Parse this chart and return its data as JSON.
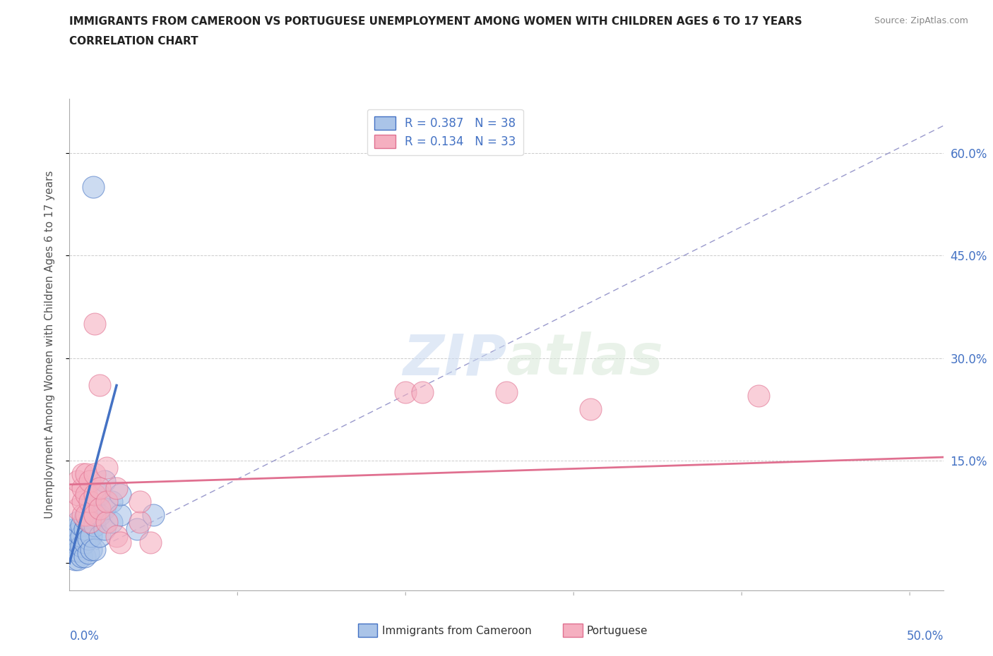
{
  "title_line1": "IMMIGRANTS FROM CAMEROON VS PORTUGUESE UNEMPLOYMENT AMONG WOMEN WITH CHILDREN AGES 6 TO 17 YEARS",
  "title_line2": "CORRELATION CHART",
  "source": "Source: ZipAtlas.com",
  "ylabel": "Unemployment Among Women with Children Ages 6 to 17 years",
  "xlim": [
    0.0,
    0.52
  ],
  "ylim": [
    -0.04,
    0.68
  ],
  "yticks": [
    0.0,
    0.15,
    0.3,
    0.45,
    0.6
  ],
  "ytick_labels": [
    "",
    "15.0%",
    "30.0%",
    "45.0%",
    "60.0%"
  ],
  "xticks": [
    0.0,
    0.1,
    0.2,
    0.3,
    0.4,
    0.5
  ],
  "xtick_labels": [
    "0.0%",
    "",
    "",
    "",
    "",
    "50.0%"
  ],
  "color_blue": "#aac4e8",
  "color_pink": "#f5afc0",
  "color_blue_dark": "#4472c4",
  "color_pink_dark": "#e07090",
  "color_axis_label": "#4472c4",
  "watermark_zip": "ZIP",
  "watermark_atlas": "atlas",
  "cameroon_points": [
    [
      0.003,
      0.005
    ],
    [
      0.003,
      0.02
    ],
    [
      0.003,
      0.035
    ],
    [
      0.003,
      0.05
    ],
    [
      0.005,
      0.005
    ],
    [
      0.005,
      0.018
    ],
    [
      0.005,
      0.03
    ],
    [
      0.005,
      0.045
    ],
    [
      0.005,
      0.06
    ],
    [
      0.007,
      0.01
    ],
    [
      0.007,
      0.025
    ],
    [
      0.007,
      0.04
    ],
    [
      0.007,
      0.055
    ],
    [
      0.009,
      0.01
    ],
    [
      0.009,
      0.03
    ],
    [
      0.009,
      0.05
    ],
    [
      0.009,
      0.065
    ],
    [
      0.011,
      0.015
    ],
    [
      0.011,
      0.035
    ],
    [
      0.013,
      0.02
    ],
    [
      0.013,
      0.04
    ],
    [
      0.013,
      0.06
    ],
    [
      0.015,
      0.02
    ],
    [
      0.015,
      0.055
    ],
    [
      0.015,
      0.08
    ],
    [
      0.018,
      0.04
    ],
    [
      0.018,
      0.07
    ],
    [
      0.018,
      0.1
    ],
    [
      0.021,
      0.05
    ],
    [
      0.021,
      0.08
    ],
    [
      0.021,
      0.12
    ],
    [
      0.025,
      0.06
    ],
    [
      0.025,
      0.09
    ],
    [
      0.03,
      0.07
    ],
    [
      0.03,
      0.1
    ],
    [
      0.014,
      0.55
    ],
    [
      0.04,
      0.05
    ],
    [
      0.05,
      0.07
    ]
  ],
  "portuguese_points": [
    [
      0.005,
      0.08
    ],
    [
      0.005,
      0.1
    ],
    [
      0.005,
      0.12
    ],
    [
      0.008,
      0.07
    ],
    [
      0.008,
      0.09
    ],
    [
      0.008,
      0.11
    ],
    [
      0.008,
      0.13
    ],
    [
      0.01,
      0.07
    ],
    [
      0.01,
      0.1
    ],
    [
      0.01,
      0.13
    ],
    [
      0.012,
      0.06
    ],
    [
      0.012,
      0.09
    ],
    [
      0.012,
      0.12
    ],
    [
      0.015,
      0.07
    ],
    [
      0.015,
      0.1
    ],
    [
      0.015,
      0.13
    ],
    [
      0.015,
      0.35
    ],
    [
      0.018,
      0.08
    ],
    [
      0.018,
      0.11
    ],
    [
      0.018,
      0.26
    ],
    [
      0.022,
      0.06
    ],
    [
      0.022,
      0.09
    ],
    [
      0.022,
      0.14
    ],
    [
      0.028,
      0.04
    ],
    [
      0.028,
      0.11
    ],
    [
      0.03,
      0.03
    ],
    [
      0.042,
      0.06
    ],
    [
      0.042,
      0.09
    ],
    [
      0.048,
      0.03
    ],
    [
      0.2,
      0.25
    ],
    [
      0.21,
      0.25
    ],
    [
      0.26,
      0.25
    ],
    [
      0.31,
      0.225
    ],
    [
      0.41,
      0.245
    ]
  ],
  "blue_solid_line": [
    [
      0.0,
      0.0
    ],
    [
      0.028,
      0.26
    ]
  ],
  "blue_dashed_line": [
    [
      0.0,
      0.0
    ],
    [
      0.52,
      0.64
    ]
  ],
  "pink_trendline": [
    [
      0.0,
      0.115
    ],
    [
      0.52,
      0.155
    ]
  ]
}
